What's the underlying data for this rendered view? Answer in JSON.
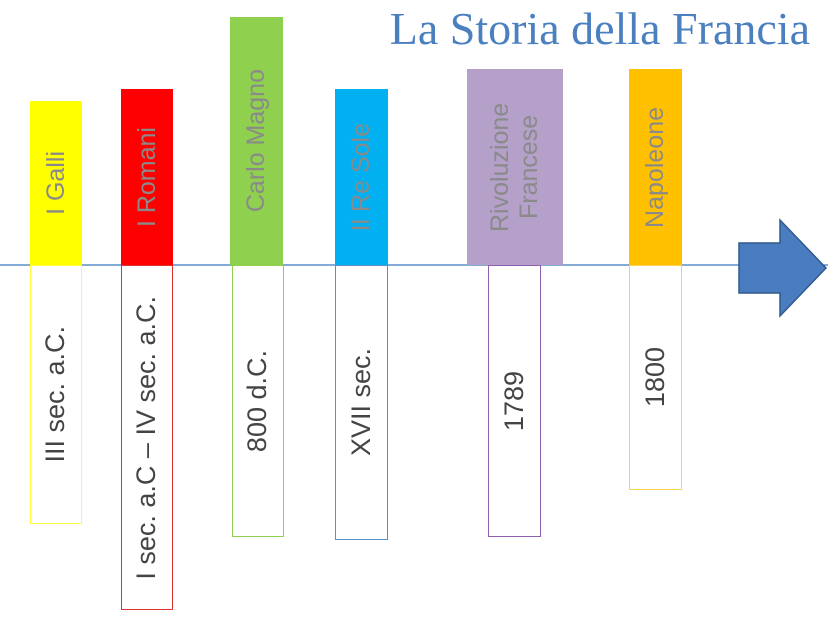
{
  "title": "La Storia della Francia",
  "eras": [
    {
      "name": "I Galli",
      "date": "III sec. a.C."
    },
    {
      "name": "I Romani",
      "date": "I sec. a.C – IV sec. a.C."
    },
    {
      "name": "Carlo Magno",
      "date": "800 d.C."
    },
    {
      "name": "Il Re Sole",
      "date": "XVII sec."
    },
    {
      "name": "Rivoluzione Francese",
      "date": "1789"
    },
    {
      "name": "Napoleone",
      "date": "1800"
    }
  ]
}
